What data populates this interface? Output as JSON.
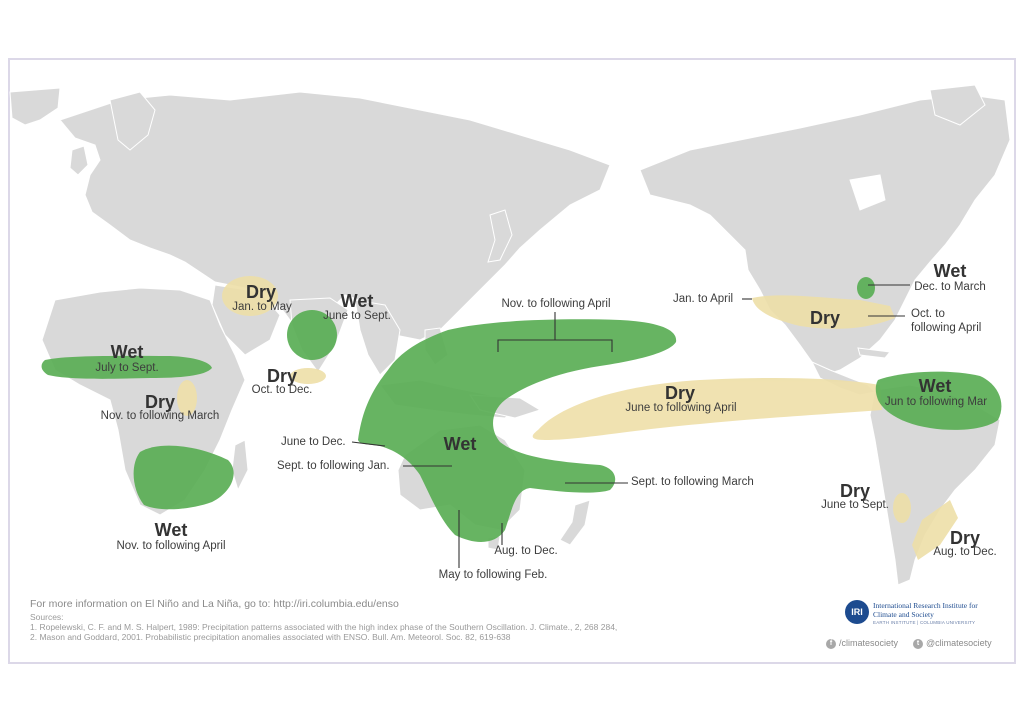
{
  "colors": {
    "wet": "#5aae55",
    "dry": "#eedfa8",
    "land": "#d9d9d9",
    "border": "#bdbdbd",
    "frame": "#dcd8e8"
  },
  "regions": {
    "asia_dry": {
      "title": "Dry",
      "period": "Jan. to May"
    },
    "india_wet": {
      "title": "Wet",
      "period": "June to Sept."
    },
    "india_dry": {
      "title": "Dry",
      "period": "Oct. to Dec."
    },
    "sahel_wet": {
      "title": "Wet",
      "period": "July to Sept."
    },
    "east_africa_dry": {
      "title": "Dry",
      "period": "Nov. to following March"
    },
    "south_africa_wet": {
      "title": "Wet",
      "period": "Nov. to following April"
    },
    "pacific_wet_top": {
      "period": "Nov. to following April"
    },
    "indonesia_wet": {
      "title": "Wet",
      "period_a": "June to Dec.",
      "period_b": "Sept. to following Jan."
    },
    "pacific_wet_south": {
      "period": "Sept. to following March"
    },
    "australia_se": {
      "period": "Aug. to Dec."
    },
    "australia_east": {
      "period": "May to following Feb."
    },
    "pacific_dry": {
      "title": "Dry",
      "period": "June to following April"
    },
    "usa_south_dry": {
      "title": "Dry",
      "period_a": "Jan. to April",
      "period_b": "Oct. to following April"
    },
    "usa_ohio_wet": {
      "title": "Wet",
      "period": "Dec. to March"
    },
    "sa_north_wet": {
      "title": "Wet",
      "period": "Jun to following Mar"
    },
    "chile_dry": {
      "title": "Dry",
      "period": "June to Sept."
    },
    "se_sa_dry": {
      "title": "Dry",
      "period": "Aug. to Dec."
    }
  },
  "footer": {
    "info": "For more information on El Niño and La Niña, go to: http://iri.columbia.edu/enso",
    "sources_label": "Sources:",
    "source1": "1. Ropelewski, C. F. and M. S. Halpert, 1989: Precipitation patterns associated with the high index phase of the Southern Oscillation. J. Climate., 2, 268 284,",
    "source2": "2. Mason and Goddard, 2001. Probabilistic precipitation anomalies associated with ENSO. Bull. Am. Meteorol. Soc. 82, 619-638"
  },
  "logo": {
    "mark": "IRI",
    "name": "International Research Institute for Climate and Society",
    "sub": "EARTH INSTITUTE | COLUMBIA UNIVERSITY"
  },
  "social": {
    "facebook": "/climatesociety",
    "twitter": "@climatesociety"
  }
}
